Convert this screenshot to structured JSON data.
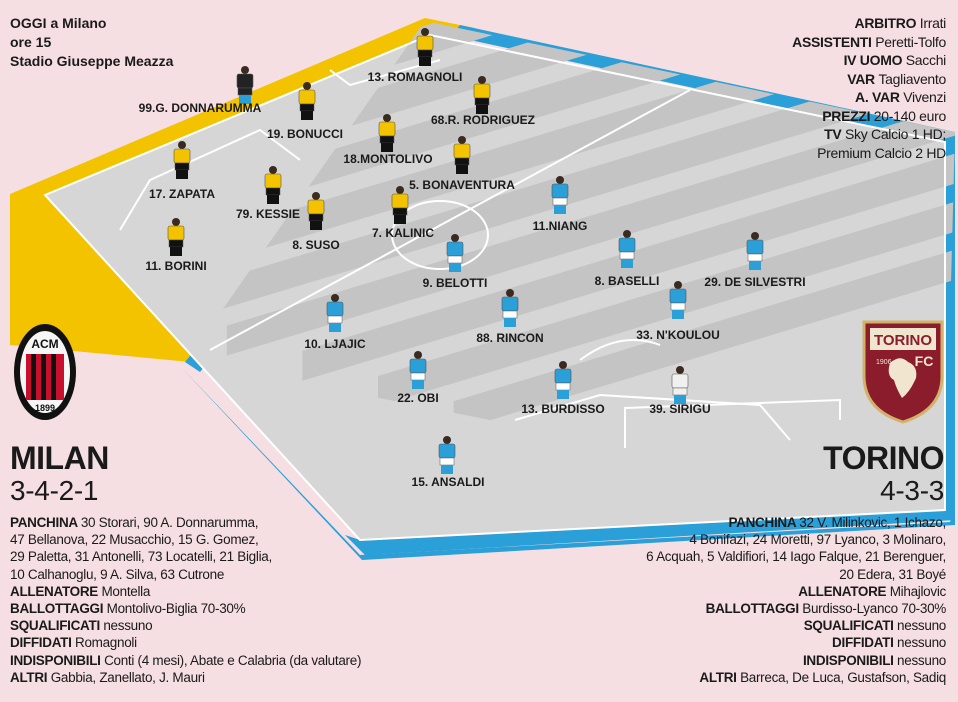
{
  "match_info": [
    "OGGI a Milano",
    "ore 15",
    "Stadio Giuseppe Meazza"
  ],
  "officials": [
    {
      "label": "ARBITRO",
      "value": "Irrati"
    },
    {
      "label": "ASSISTENTI",
      "value": "Peretti-Tolfo"
    },
    {
      "label": "IV UOMO",
      "value": "Sacchi"
    },
    {
      "label": "VAR",
      "value": "Tagliavento"
    },
    {
      "label": "A. VAR",
      "value": "Vivenzi"
    },
    {
      "label": "PREZZI",
      "value": "20-140 euro"
    },
    {
      "label": "TV",
      "value": "Sky Calcio 1 HD;"
    },
    {
      "label": "",
      "value": "Premium Calcio 2 HD"
    }
  ],
  "colors": {
    "milan_border": "#f3c300",
    "torino_border": "#2a9fd8",
    "milan_kit": "#f3c300",
    "torino_kit": "#2a9fd8",
    "background": "#f6dfe3"
  },
  "milan": {
    "name": "MILAN",
    "formation": "3-4-2-1",
    "players": [
      {
        "label": "99.G. DONNARUMMA",
        "kit": "gk"
      },
      {
        "label": "13. ROMAGNOLI",
        "kit": "home"
      },
      {
        "label": "19. BONUCCI",
        "kit": "home"
      },
      {
        "label": "68.R. RODRIGUEZ",
        "kit": "home"
      },
      {
        "label": "18.MONTOLIVO",
        "kit": "home"
      },
      {
        "label": "17. ZAPATA",
        "kit": "home"
      },
      {
        "label": "5. BONAVENTURA",
        "kit": "home"
      },
      {
        "label": "79. KESSIE",
        "kit": "home"
      },
      {
        "label": "8. SUSO",
        "kit": "home"
      },
      {
        "label": "7. KALINIC",
        "kit": "home"
      },
      {
        "label": "11. BORINI",
        "kit": "home"
      }
    ],
    "details": [
      {
        "label": "PANCHINA",
        "lines": [
          "30 Storari, 90 A. Donnarumma,",
          "47 Bellanova, 22 Musacchio, 15 G. Gomez,",
          "29 Paletta, 31 Antonelli, 73 Locatelli, 21 Biglia,",
          "10 Calhanoglu, 9 A. Silva, 63 Cutrone"
        ]
      },
      {
        "label": "ALLENATORE",
        "lines": [
          "Montella"
        ]
      },
      {
        "label": "BALLOTTAGGI",
        "lines": [
          "Montolivo-Biglia 70-30%"
        ]
      },
      {
        "label": "SQUALIFICATI",
        "lines": [
          "nessuno"
        ]
      },
      {
        "label": "DIFFIDATI",
        "lines": [
          "Romagnoli"
        ]
      },
      {
        "label": "INDISPONIBILI",
        "lines": [
          "Conti (4 mesi), Abate e Calabria (da valutare)"
        ]
      },
      {
        "label": "ALTRI",
        "lines": [
          "Gabbia, Zanellato, J. Mauri"
        ]
      }
    ],
    "logo": {
      "top_text": "ACM",
      "year": "1899"
    }
  },
  "torino": {
    "name": "TORINO",
    "formation": "4-3-3",
    "players": [
      {
        "label": "11.NIANG",
        "kit": "away"
      },
      {
        "label": "9. BELOTTI",
        "kit": "away"
      },
      {
        "label": "8. BASELLI",
        "kit": "away"
      },
      {
        "label": "29. DE SILVESTRI",
        "kit": "away"
      },
      {
        "label": "10. LJAJIC",
        "kit": "away"
      },
      {
        "label": "88. RINCON",
        "kit": "away"
      },
      {
        "label": "33. N'KOULOU",
        "kit": "away"
      },
      {
        "label": "22. OBI",
        "kit": "away"
      },
      {
        "label": "13. BURDISSO",
        "kit": "away"
      },
      {
        "label": "39. SIRIGU",
        "kit": "gk"
      },
      {
        "label": "15. ANSALDI",
        "kit": "away"
      }
    ],
    "details": [
      {
        "label": "PANCHINA",
        "lines": [
          "32 V. Milinkovic, 1 Ichazo,",
          "4 Bonifazi, 24 Moretti, 97 Lyanco, 3 Molinaro,",
          "6 Acquah, 5 Valdifiori, 14 Iago Falque, 21 Berenguer,",
          "20 Edera, 31 Boyé"
        ]
      },
      {
        "label": "ALLENATORE",
        "lines": [
          "Mihajlovic"
        ]
      },
      {
        "label": "BALLOTTAGGI",
        "lines": [
          "Burdisso-Lyanco 70-30%"
        ]
      },
      {
        "label": "SQUALIFICATI",
        "lines": [
          "nessuno"
        ]
      },
      {
        "label": "DIFFIDATI",
        "lines": [
          "nessuno"
        ]
      },
      {
        "label": "INDISPONIBILI",
        "lines": [
          "nessuno"
        ]
      },
      {
        "label": "ALTRI",
        "lines": [
          "Barreca, De Luca, Gustafson, Sadiq"
        ]
      }
    ],
    "logo": {
      "top_text": "TORINO",
      "year": "1906",
      "fc": "FC"
    }
  }
}
